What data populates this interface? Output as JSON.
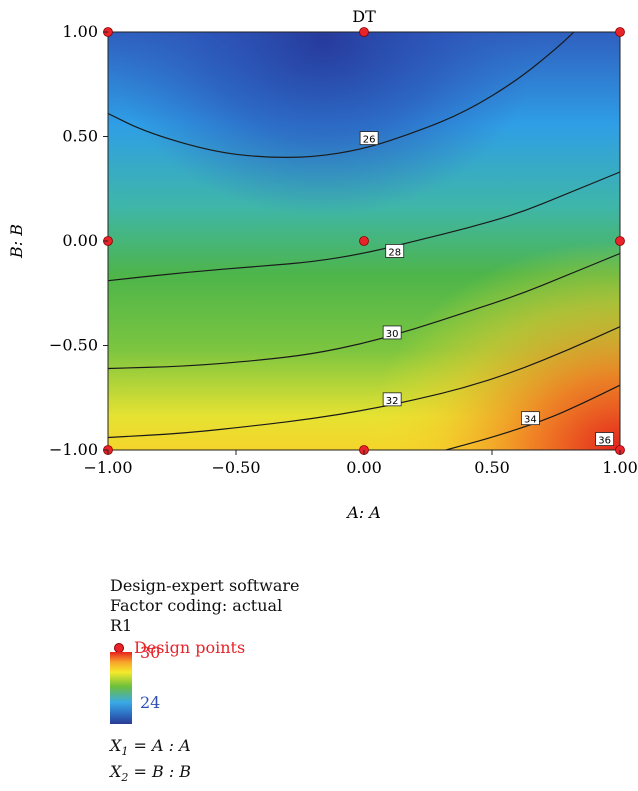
{
  "chart_data": {
    "type": "contour",
    "title": "DT",
    "xlabel": "A: A",
    "ylabel": "B: B",
    "xlim": [
      -1.0,
      1.0
    ],
    "ylim": [
      -1.0,
      1.0
    ],
    "x_ticks": [
      "−1.00",
      "−0.50",
      "0.00",
      "0.50",
      "1.00"
    ],
    "y_ticks": [
      "1.00",
      "0.50",
      "0.00",
      "−0.50",
      "−1.00"
    ],
    "x_tick_values": [
      -1.0,
      -0.5,
      0.0,
      0.5,
      1.0
    ],
    "y_tick_values": [
      1.0,
      0.5,
      0.0,
      -0.5,
      -1.0
    ],
    "contours": [
      {
        "label": "26",
        "value": 26,
        "points": [
          [
            -1.0,
            0.61
          ],
          [
            -0.85,
            0.52
          ],
          [
            -0.6,
            0.43
          ],
          [
            -0.4,
            0.4
          ],
          [
            -0.2,
            0.4
          ],
          [
            0.0,
            0.44
          ],
          [
            0.2,
            0.52
          ],
          [
            0.4,
            0.62
          ],
          [
            0.6,
            0.77
          ],
          [
            0.75,
            0.92
          ],
          [
            0.82,
            1.0
          ]
        ],
        "label_at": [
          0.02,
          0.49
        ]
      },
      {
        "label": "28",
        "value": 28,
        "points": [
          [
            -1.0,
            -0.19
          ],
          [
            -0.7,
            -0.15
          ],
          [
            -0.4,
            -0.12
          ],
          [
            -0.2,
            -0.1
          ],
          [
            0.0,
            -0.06
          ],
          [
            0.2,
            0.0
          ],
          [
            0.4,
            0.06
          ],
          [
            0.6,
            0.13
          ],
          [
            0.8,
            0.23
          ],
          [
            1.0,
            0.33
          ]
        ],
        "label_at": [
          0.12,
          -0.05
        ]
      },
      {
        "label": "30",
        "value": 30,
        "points": [
          [
            -1.0,
            -0.61
          ],
          [
            -0.7,
            -0.6
          ],
          [
            -0.4,
            -0.57
          ],
          [
            -0.2,
            -0.54
          ],
          [
            0.0,
            -0.49
          ],
          [
            0.2,
            -0.42
          ],
          [
            0.4,
            -0.34
          ],
          [
            0.6,
            -0.26
          ],
          [
            0.8,
            -0.16
          ],
          [
            1.0,
            -0.06
          ]
        ],
        "label_at": [
          0.11,
          -0.44
        ]
      },
      {
        "label": "32",
        "value": 32,
        "points": [
          [
            -1.0,
            -0.94
          ],
          [
            -0.7,
            -0.92
          ],
          [
            -0.4,
            -0.88
          ],
          [
            -0.2,
            -0.85
          ],
          [
            0.0,
            -0.81
          ],
          [
            0.2,
            -0.76
          ],
          [
            0.4,
            -0.7
          ],
          [
            0.6,
            -0.62
          ],
          [
            0.8,
            -0.52
          ],
          [
            1.0,
            -0.41
          ]
        ],
        "label_at": [
          0.11,
          -0.76
        ]
      },
      {
        "label": "34",
        "value": 34,
        "points": [
          [
            0.32,
            -1.0
          ],
          [
            0.5,
            -0.94
          ],
          [
            0.7,
            -0.86
          ],
          [
            0.85,
            -0.78
          ],
          [
            1.0,
            -0.69
          ]
        ],
        "label_at": [
          0.65,
          -0.85
        ]
      },
      {
        "label": "36",
        "value": 36,
        "points": [],
        "label_at": [
          0.94,
          -0.95
        ]
      }
    ],
    "design_points": [
      [
        -1,
        1
      ],
      [
        0,
        1
      ],
      [
        1,
        1
      ],
      [
        -1,
        0
      ],
      [
        0,
        0
      ],
      [
        1,
        0
      ],
      [
        -1,
        -1
      ],
      [
        0,
        -1
      ],
      [
        1,
        -1
      ]
    ],
    "colors": {
      "high": "#e8211e",
      "low": "#2a3b93",
      "design_point": "#e8232a"
    }
  },
  "info": {
    "software": "Design-expert software",
    "coding": "Factor coding: actual",
    "response": "R1",
    "legend_design_points": "Design points",
    "scale_max": "30",
    "scale_min": "24",
    "x1_name": "X",
    "x1_sub": "1",
    "x1_def": " = A : A",
    "x2_name": "X",
    "x2_sub": "2",
    "x2_def": " = B : B"
  }
}
